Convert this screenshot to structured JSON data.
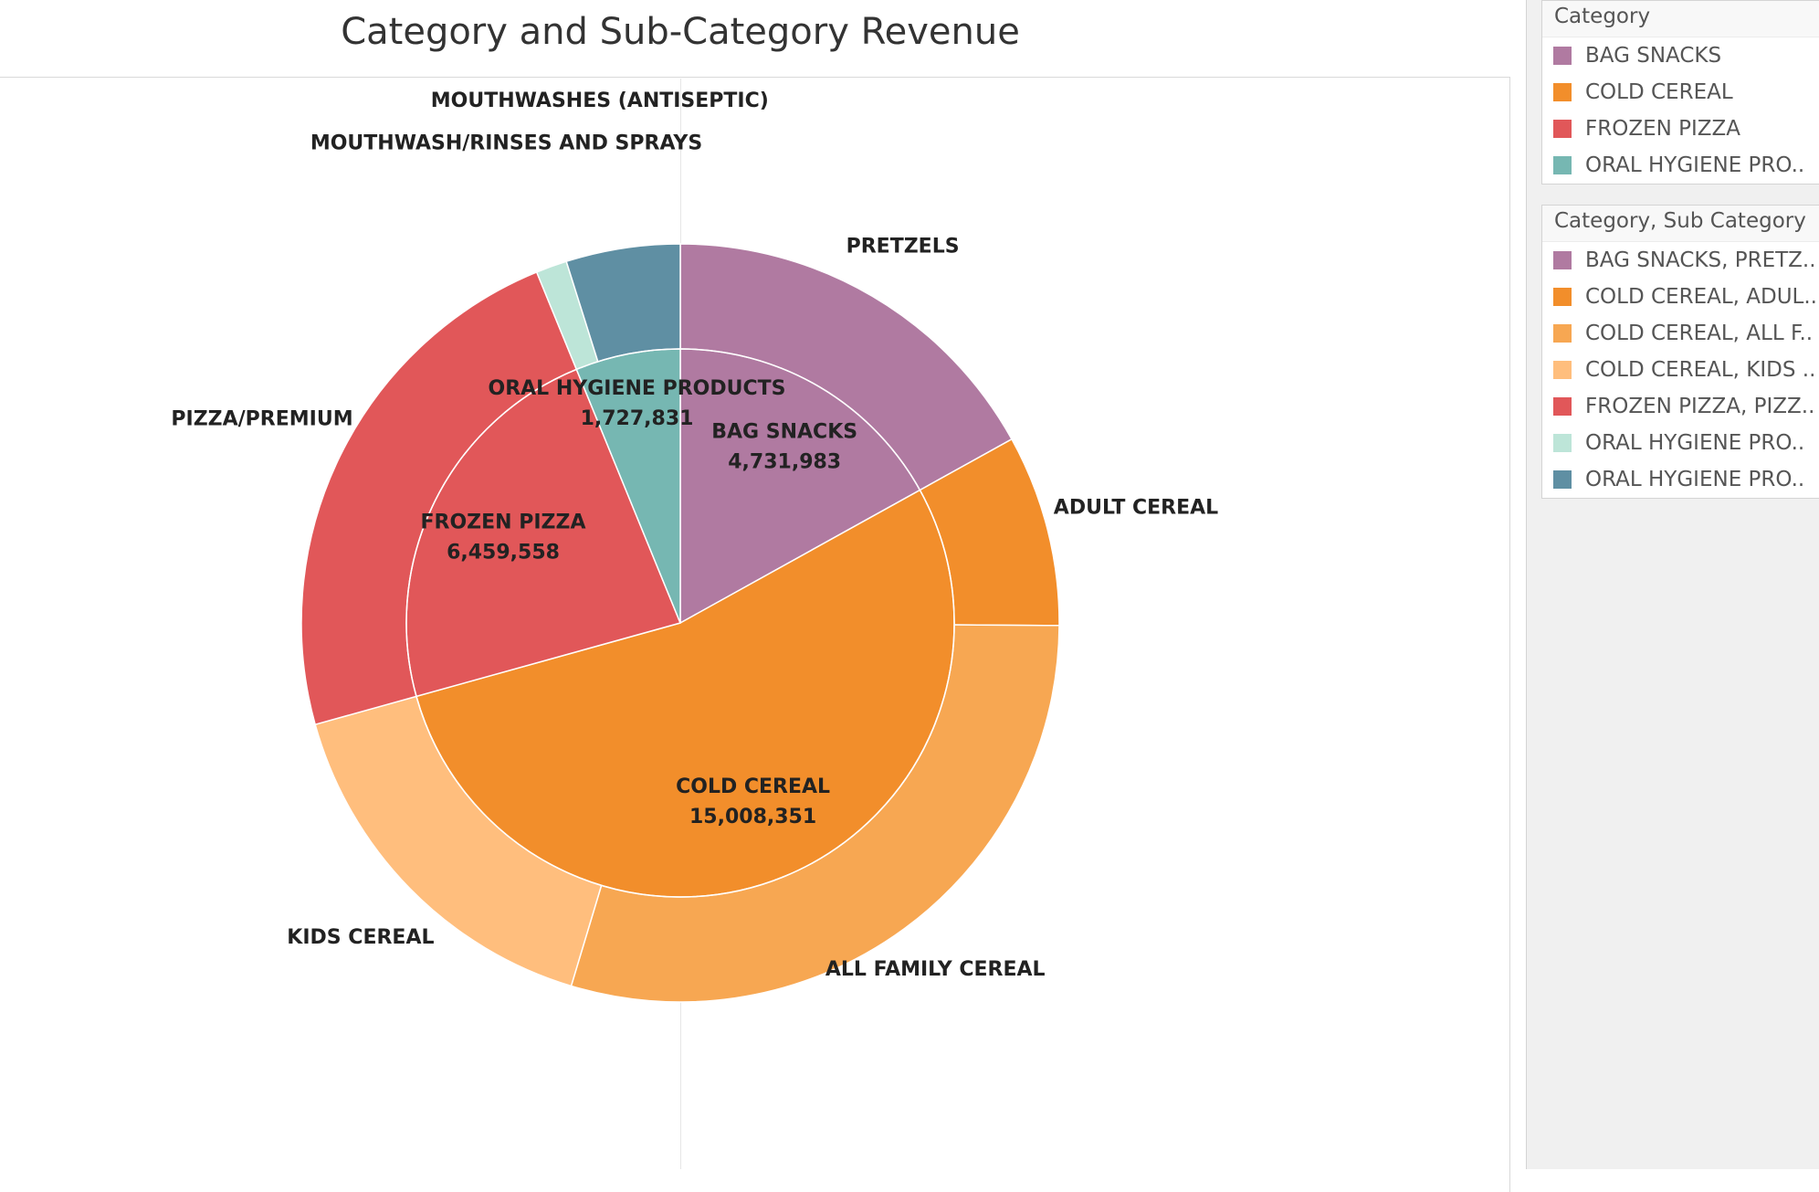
{
  "chart_data": {
    "type": "pie",
    "title": "Category and Sub-Category Revenue",
    "inner_ring": [
      {
        "name": "BAG SNACKS",
        "value": 4731983,
        "value_label": "4,731,983",
        "color": "#b07aa1"
      },
      {
        "name": "COLD CEREAL",
        "value": 15008351,
        "value_label": "15,008,351",
        "color": "#f28e2b"
      },
      {
        "name": "FROZEN PIZZA",
        "value": 6459558,
        "value_label": "6,459,558",
        "color": "#e15759"
      },
      {
        "name": "ORAL HYGIENE PRODUCTS",
        "value": 1727831,
        "value_label": "1,727,831",
        "color": "#76b7b2"
      }
    ],
    "outer_ring": [
      {
        "name": "PRETZELS",
        "category": "BAG SNACKS",
        "value": 4731983,
        "color": "#b07aa1"
      },
      {
        "name": "ADULT CEREAL",
        "category": "COLD CEREAL",
        "value": 2280000,
        "color": "#f28e2b"
      },
      {
        "name": "ALL FAMILY CEREAL",
        "category": "COLD CEREAL",
        "value": 8250000,
        "color": "#f7a752"
      },
      {
        "name": "KIDS CEREAL",
        "category": "COLD CEREAL",
        "value": 4478351,
        "color": "#ffbe7d"
      },
      {
        "name": "PIZZA/PREMIUM",
        "category": "FROZEN PIZZA",
        "value": 6459558,
        "color": "#e15759"
      },
      {
        "name": "MOUTHWASH/RINSES AND SPRAYS",
        "category": "ORAL HYGIENE PRODUCTS",
        "value": 370000,
        "color": "#bde5d8"
      },
      {
        "name": "MOUTHWASHES (ANTISEPTIC)",
        "category": "ORAL HYGIENE PRODUCTS",
        "value": 1357831,
        "color": "#5f8fa3"
      }
    ]
  },
  "legend_category": {
    "title": "Category",
    "items": [
      {
        "label": "BAG SNACKS",
        "color": "#b07aa1"
      },
      {
        "label": "COLD CEREAL",
        "color": "#f28e2b"
      },
      {
        "label": "FROZEN PIZZA",
        "color": "#e15759"
      },
      {
        "label": "ORAL HYGIENE PRO..",
        "color": "#76b7b2"
      }
    ]
  },
  "legend_subcategory": {
    "title": "Category, Sub Category",
    "items": [
      {
        "label": "BAG SNACKS, PRETZ..",
        "color": "#b07aa1"
      },
      {
        "label": "COLD CEREAL, ADUL..",
        "color": "#f28e2b"
      },
      {
        "label": "COLD CEREAL, ALL F..",
        "color": "#f7a752"
      },
      {
        "label": "COLD CEREAL, KIDS ..",
        "color": "#ffbe7d"
      },
      {
        "label": "FROZEN PIZZA, PIZZ..",
        "color": "#e15759"
      },
      {
        "label": "ORAL HYGIENE PRO..",
        "color": "#bde5d8"
      },
      {
        "label": "ORAL HYGIENE PRO..",
        "color": "#5f8fa3"
      }
    ]
  }
}
